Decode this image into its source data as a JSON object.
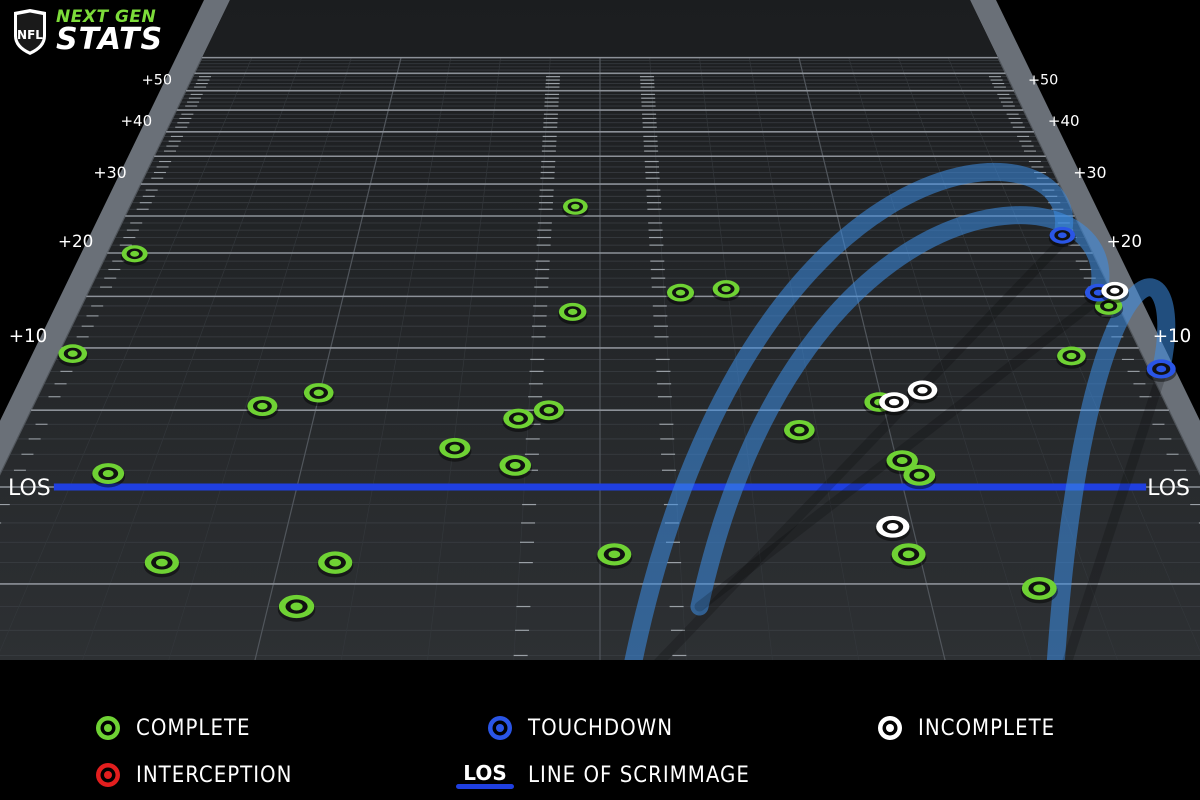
{
  "branding": {
    "league": "NFL",
    "line1": "NEXT GEN",
    "line2": "STATS"
  },
  "colors": {
    "complete": "#6fd234",
    "touchdown": "#2a55e6",
    "incomplete": "#ffffff",
    "interception": "#e21e1e",
    "los": "#1f3fe0",
    "trajectory": "#3c8ee6"
  },
  "chart_data": {
    "type": "scatter",
    "ylim": [
      -10,
      55
    ],
    "xlim": [
      -26.7,
      26.7
    ],
    "yticks": [
      10,
      20,
      30,
      40,
      50
    ],
    "ytick_labels": [
      "+10",
      "+20",
      "+30",
      "+40",
      "+50"
    ],
    "los_label": "LOS",
    "series": [
      {
        "name": "COMPLETE",
        "points": [
          [
            -25.2,
            19.9
          ],
          [
            -26.0,
            9.5
          ],
          [
            -21.9,
            0.8
          ],
          [
            -15.9,
            5.3
          ],
          [
            -13.4,
            6.3
          ],
          [
            -18.2,
            -4.0
          ],
          [
            -11.0,
            -4.0
          ],
          [
            -12.2,
            -6.0
          ],
          [
            -6.6,
            2.4
          ],
          [
            -3.8,
            4.4
          ],
          [
            -2.4,
            5.0
          ],
          [
            -3.8,
            1.3
          ],
          [
            -1.4,
            26.4
          ],
          [
            -1.4,
            13.4
          ],
          [
            4.2,
            15.4
          ],
          [
            6.6,
            15.8
          ],
          [
            0.6,
            -3.6
          ],
          [
            9.2,
            3.6
          ],
          [
            13.2,
            5.6
          ],
          [
            13.6,
            1.6
          ],
          [
            14.2,
            0.7
          ],
          [
            12.9,
            -3.6
          ],
          [
            17.9,
            -5.2
          ],
          [
            23.2,
            9.3
          ],
          [
            26.2,
            14.0
          ]
        ]
      },
      {
        "name": "TOUCHDOWN",
        "points": [
          [
            25.5,
            22.3
          ],
          [
            26.0,
            15.4
          ],
          [
            27.3,
            8.2
          ]
        ]
      },
      {
        "name": "INCOMPLETE",
        "points": [
          [
            13.9,
            5.6
          ],
          [
            15.4,
            6.5
          ],
          [
            12.5,
            -2.2
          ],
          [
            26.9,
            15.6
          ]
        ]
      },
      {
        "name": "INTERCEPTION",
        "points": []
      }
    ],
    "trajectories": [
      {
        "from": [
          1.0,
          -9.5
        ],
        "to": [
          25.5,
          22.3
        ],
        "peak": 31.0
      },
      {
        "from": [
          4.0,
          -6.0
        ],
        "to": [
          26.0,
          15.4
        ],
        "peak": 24.0
      },
      {
        "from": [
          17.0,
          -9.8
        ],
        "to": [
          27.3,
          8.2
        ],
        "peak": 15.5
      }
    ]
  },
  "legend": {
    "complete": "COMPLETE",
    "touchdown": "TOUCHDOWN",
    "incomplete": "INCOMPLETE",
    "interception": "INTERCEPTION",
    "los_badge": "LOS",
    "los": "LINE OF SCRIMMAGE"
  }
}
